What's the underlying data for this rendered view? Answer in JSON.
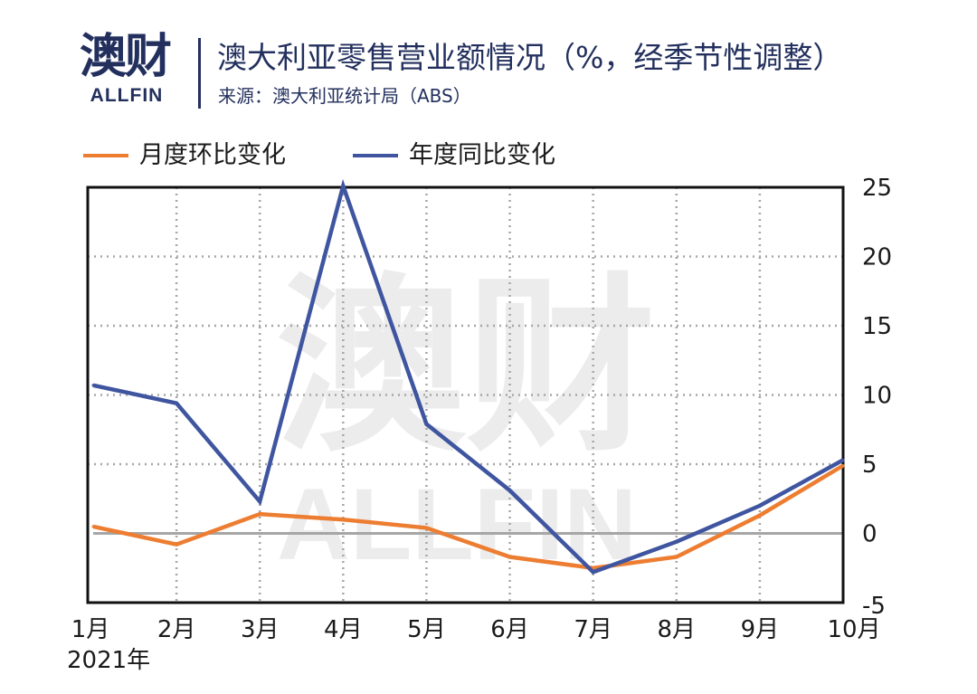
{
  "header": {
    "logo_cn": "澳财",
    "logo_en": "ALLFIN",
    "title": "澳大利亚零售营业额情况（%，经季节性调整）",
    "source": "来源：澳大利亚统计局（ABS）"
  },
  "watermark": {
    "cn": "澳财",
    "en": "ALLFIN"
  },
  "colors": {
    "mom": "#ed7d31",
    "yoy": "#3f55a0",
    "brand": "#23305e",
    "grid": "#a6a6a6",
    "zero_line": "#a6a6a6"
  },
  "chart_data": {
    "type": "line",
    "categories": [
      "1月",
      "2月",
      "3月",
      "4月",
      "5月",
      "6月",
      "7月",
      "8月",
      "9月",
      "10月"
    ],
    "year_label": "2021年",
    "series": [
      {
        "name": "月度环比变化",
        "color": "#ed7d31",
        "values": [
          0.5,
          -0.8,
          1.4,
          1.0,
          0.4,
          -1.7,
          -2.5,
          -1.7,
          1.3,
          4.9
        ]
      },
      {
        "name": "年度同比变化",
        "color": "#3f55a0",
        "values": [
          10.7,
          9.4,
          2.3,
          25.1,
          7.9,
          3.1,
          -2.8,
          -0.6,
          2.0,
          5.3
        ]
      }
    ],
    "ylim": [
      -5,
      25
    ],
    "yticks": [
      25,
      20,
      15,
      10,
      5,
      0,
      -5
    ],
    "y_axis_side": "right",
    "grid": true,
    "legend_position": "top-left"
  }
}
